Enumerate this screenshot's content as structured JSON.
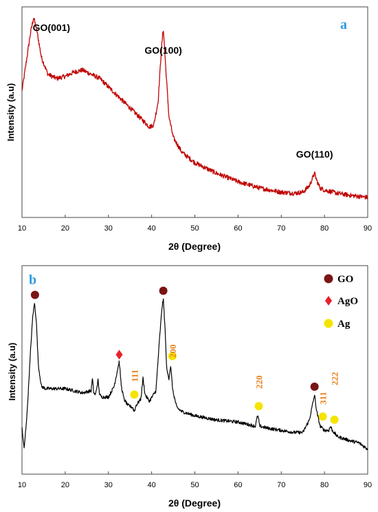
{
  "chart_data": [
    {
      "type": "line",
      "panel_label": "a",
      "xlabel": "2θ (Degree)",
      "ylabel": "Intensity (a.u)",
      "xlim": [
        10,
        90
      ],
      "xticks": [
        "10",
        "20",
        "30",
        "40",
        "50",
        "60",
        "70",
        "80",
        "90"
      ],
      "grid": false,
      "series": [
        {
          "color": "#c00000",
          "x": [
            10,
            11,
            12,
            12.7,
            13.5,
            14.5,
            16,
            18,
            20,
            22,
            24,
            26,
            28,
            30,
            32,
            34,
            36,
            38,
            39.5,
            40.5,
            41.5,
            42.2,
            42.7,
            43.3,
            44,
            45,
            47,
            50,
            55,
            60,
            65,
            70,
            73,
            75,
            76.5,
            77.3,
            77.7,
            78.3,
            79,
            80,
            83,
            86,
            90
          ],
          "y": [
            60,
            74,
            88,
            95,
            88,
            76,
            68,
            66,
            67,
            69,
            70,
            68,
            66,
            62,
            58,
            54,
            50,
            46,
            43,
            44,
            55,
            78,
            90,
            70,
            48,
            38,
            31,
            26,
            21,
            17,
            14,
            12,
            11.5,
            12,
            15,
            19,
            21,
            17,
            14,
            13,
            11.5,
            10.5,
            9.5
          ]
        }
      ],
      "annotations": [
        {
          "text": "GO(001)",
          "x": 13
        },
        {
          "text": "GO(100)",
          "x": 42.7
        },
        {
          "text": "GO(110)",
          "x": 77.7
        }
      ]
    },
    {
      "type": "line",
      "panel_label": "b",
      "xlabel": "2θ (Degree)",
      "ylabel": "Intensity (a.u)",
      "xlim": [
        10,
        90
      ],
      "xticks": [
        "10",
        "20",
        "30",
        "40",
        "50",
        "60",
        "70",
        "80",
        "90"
      ],
      "grid": false,
      "legend": {
        "position": "top-right",
        "entries": [
          {
            "label": "GO",
            "marker": "circle",
            "color": "#7b1414"
          },
          {
            "label": "AgO",
            "marker": "diamond",
            "color": "#e8202a"
          },
          {
            "label": "Ag",
            "marker": "circle",
            "color": "#f5e400"
          }
        ]
      },
      "series": [
        {
          "color": "#000000",
          "x": [
            10,
            10.5,
            11.2,
            12,
            12.5,
            12.9,
            13.3,
            13.8,
            14.5,
            15.5,
            17,
            20,
            24,
            26,
            26.3,
            26.6,
            27,
            27.6,
            27.9,
            28.3,
            30,
            31.3,
            32.1,
            32.5,
            33,
            33.6,
            34.5,
            35.6,
            36,
            36.4,
            37.5,
            38,
            38.5,
            39.5,
            41,
            41.8,
            42.4,
            42.7,
            43.1,
            43.5,
            44,
            44.4,
            44.9,
            45.8,
            47,
            50,
            55,
            60,
            64,
            64.5,
            64.7,
            65,
            67,
            70,
            73,
            75,
            76.5,
            77.3,
            77.7,
            78.2,
            79,
            80,
            81,
            81.4,
            81.8,
            83,
            86,
            88,
            90
          ],
          "y": [
            22,
            12,
            30,
            60,
            76,
            82,
            74,
            52,
            42,
            41,
            41,
            41,
            39,
            40,
            46,
            39,
            38,
            45,
            39,
            37,
            37,
            42,
            50,
            54,
            42,
            36,
            33,
            32,
            30,
            33,
            36,
            46,
            38,
            35,
            40,
            64,
            80,
            84,
            70,
            50,
            46,
            52,
            40,
            32,
            30,
            28,
            26,
            25,
            23,
            28,
            27,
            23,
            22,
            21,
            20,
            20,
            26,
            34,
            38,
            30,
            23,
            21,
            21,
            23,
            21,
            18,
            16,
            15,
            12
          ]
        }
      ],
      "markers": [
        {
          "phase": "GO",
          "x": 13
        },
        {
          "phase": "AgO",
          "x": 32.5
        },
        {
          "phase": "Ag",
          "x": 36
        },
        {
          "phase": "GO",
          "x": 42.7
        },
        {
          "phase": "Ag",
          "x": 44.8
        },
        {
          "phase": "Ag",
          "x": 64.8
        },
        {
          "phase": "GO",
          "x": 77.7
        },
        {
          "phase": "Ag",
          "x": 79.6
        },
        {
          "phase": "Ag",
          "x": 82.3
        }
      ],
      "plane_labels": [
        {
          "text": "111",
          "x": 36
        },
        {
          "text": "200",
          "x": 44.8
        },
        {
          "text": "220",
          "x": 64.8
        },
        {
          "text": "311",
          "x": 79.6
        },
        {
          "text": "222",
          "x": 82.3
        }
      ]
    }
  ],
  "colors": {
    "panel_label": "#2e9be0",
    "plane_label": "#e8821e"
  }
}
